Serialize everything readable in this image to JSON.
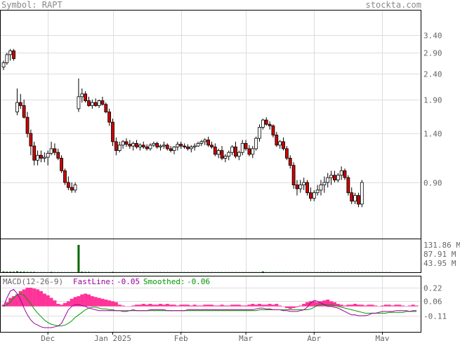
{
  "header": {
    "symbol_text": "Symbol: RAPT",
    "site": "stockta.com"
  },
  "macd": {
    "title": "MACD(12-26-9)",
    "fast_label": "FastLine:",
    "fast_value": "-0.05",
    "smooth_label": "Smoothed:",
    "smooth_value": "-0.06",
    "ticks": [
      "0.22",
      "0.06",
      "-0.11"
    ],
    "tick_values": [
      0.22,
      0.06,
      -0.11
    ],
    "fast_color": "#990099",
    "smooth_color": "#009900",
    "hist_color": "#ff3399",
    "hist": [
      0.02,
      0.05,
      0.1,
      0.12,
      0.14,
      0.18,
      0.2,
      0.22,
      0.22,
      0.21,
      0.2,
      0.18,
      0.15,
      0.13,
      0.1,
      0.07,
      0.03,
      0.02,
      0.04,
      0.06,
      0.09,
      0.11,
      0.12,
      0.14,
      0.15,
      0.14,
      0.12,
      0.11,
      0.1,
      0.09,
      0.08,
      0.07,
      0.06,
      0.05,
      0.02,
      0.01,
      0.0,
      0.0,
      0.01,
      0.02,
      0.02,
      0.03,
      0.02,
      0.03,
      0.02,
      0.02,
      0.03,
      0.02,
      0.03,
      0.02,
      0.02,
      0.01,
      0.02,
      0.02,
      0.02,
      0.01,
      0.02,
      0.01,
      0.01,
      0.02,
      0.02,
      0.02,
      0.01,
      0.01,
      0.02,
      0.01,
      0.01,
      0.02,
      0.02,
      0.02,
      0.01,
      0.01,
      0.02,
      0.03,
      0.02,
      0.03,
      0.02,
      0.02,
      0.03,
      0.02,
      0.03,
      0.01,
      0.0,
      -0.02,
      -0.03,
      -0.02,
      -0.01,
      0.01,
      0.03,
      0.05,
      0.06,
      0.06,
      0.05,
      0.06,
      0.07,
      0.08,
      0.06,
      0.05,
      0.03,
      0.02,
      0.01,
      0.02,
      0.02,
      0.03,
      0.02,
      0.02,
      0.01,
      0.02,
      0.02,
      0.01,
      0.0,
      0.01,
      0.02,
      0.02,
      0.01,
      0.02,
      0.02,
      0.01,
      0.0,
      0.01,
      0.02,
      0.01
    ],
    "fast": [
      0.0,
      0.1,
      0.18,
      0.2,
      0.15,
      0.08,
      -0.02,
      -0.1,
      -0.16,
      -0.2,
      -0.22,
      -0.24,
      -0.25,
      -0.25,
      -0.25,
      -0.24,
      -0.23,
      -0.2,
      -0.12,
      -0.04,
      0.0,
      0.02,
      0.02,
      0.01,
      0.0,
      -0.02,
      -0.03,
      -0.04,
      -0.05,
      -0.05,
      -0.05,
      -0.05,
      -0.05,
      -0.05,
      -0.05,
      -0.06,
      -0.06,
      -0.05,
      -0.04,
      -0.05,
      -0.05,
      -0.05,
      -0.05,
      -0.04,
      -0.04,
      -0.04,
      -0.04,
      -0.04,
      -0.05,
      -0.05,
      -0.05,
      -0.05,
      -0.05,
      -0.05,
      -0.04,
      -0.04,
      -0.04,
      -0.04,
      -0.04,
      -0.04,
      -0.04,
      -0.04,
      -0.04,
      -0.04,
      -0.04,
      -0.04,
      -0.04,
      -0.04,
      -0.04,
      -0.04,
      -0.04,
      -0.04,
      -0.04,
      -0.04,
      -0.03,
      -0.02,
      -0.02,
      -0.03,
      -0.03,
      -0.04,
      -0.04,
      -0.04,
      -0.05,
      -0.05,
      -0.06,
      -0.06,
      -0.06,
      -0.05,
      -0.04,
      -0.01,
      0.04,
      0.07,
      0.06,
      0.04,
      0.02,
      0.0,
      0.0,
      -0.01,
      -0.02,
      -0.04,
      -0.06,
      -0.08,
      -0.1,
      -0.1,
      -0.11,
      -0.11,
      -0.11,
      -0.1,
      -0.08,
      -0.08,
      -0.07,
      -0.06,
      -0.06,
      -0.06,
      -0.06,
      -0.05,
      -0.05,
      -0.05,
      -0.05,
      -0.06,
      -0.05,
      -0.05
    ],
    "smooth": [
      0.0,
      0.02,
      0.05,
      0.1,
      0.14,
      0.15,
      0.13,
      0.08,
      0.03,
      -0.03,
      -0.08,
      -0.12,
      -0.16,
      -0.19,
      -0.21,
      -0.22,
      -0.23,
      -0.23,
      -0.22,
      -0.2,
      -0.17,
      -0.13,
      -0.1,
      -0.07,
      -0.04,
      -0.02,
      -0.01,
      -0.01,
      -0.02,
      -0.03,
      -0.03,
      -0.04,
      -0.04,
      -0.05,
      -0.05,
      -0.05,
      -0.05,
      -0.05,
      -0.05,
      -0.05,
      -0.05,
      -0.05,
      -0.05,
      -0.05,
      -0.05,
      -0.05,
      -0.05,
      -0.05,
      -0.05,
      -0.05,
      -0.05,
      -0.05,
      -0.05,
      -0.05,
      -0.05,
      -0.05,
      -0.05,
      -0.05,
      -0.05,
      -0.05,
      -0.05,
      -0.05,
      -0.05,
      -0.05,
      -0.05,
      -0.05,
      -0.05,
      -0.05,
      -0.05,
      -0.05,
      -0.05,
      -0.05,
      -0.05,
      -0.05,
      -0.05,
      -0.04,
      -0.04,
      -0.04,
      -0.04,
      -0.04,
      -0.04,
      -0.04,
      -0.04,
      -0.04,
      -0.04,
      -0.04,
      -0.04,
      -0.04,
      -0.04,
      -0.04,
      -0.03,
      -0.01,
      0.01,
      0.02,
      0.02,
      0.02,
      0.02,
      0.01,
      0.0,
      -0.01,
      -0.02,
      -0.03,
      -0.04,
      -0.05,
      -0.06,
      -0.07,
      -0.08,
      -0.08,
      -0.08,
      -0.08,
      -0.08,
      -0.08,
      -0.08,
      -0.07,
      -0.07,
      -0.07,
      -0.07,
      -0.07,
      -0.06,
      -0.06,
      -0.06,
      -0.06
    ]
  },
  "chart_data": {
    "type": "candlestick",
    "symbol": "RAPT",
    "price_ticks": [
      "3.40",
      "2.90",
      "2.40",
      "1.90",
      "1.40",
      "0.90"
    ],
    "price_tick_values": [
      3.4,
      2.9,
      2.4,
      1.9,
      1.4,
      0.9
    ],
    "volume_ticks": [
      "131.86 M",
      "87.91 M",
      "43.95 M"
    ],
    "volume_tick_values": [
      131.86,
      87.91,
      43.95
    ],
    "volume_unit": "M",
    "x_labels": [
      "Dec",
      "Jan 2025",
      "Feb",
      "Mar",
      "Apr",
      "May"
    ],
    "x_label_index": [
      13,
      32,
      52,
      71,
      91,
      111
    ],
    "up_color": "#ffffff",
    "down_color": "#cc0000",
    "volume_color": "#006600",
    "ohlc": [
      [
        2.55,
        2.7,
        2.48,
        2.65
      ],
      [
        2.65,
        2.9,
        2.6,
        2.85
      ],
      [
        2.85,
        3.0,
        2.7,
        2.95
      ],
      [
        2.95,
        3.0,
        2.7,
        2.75
      ],
      [
        1.7,
        2.1,
        1.65,
        1.85
      ],
      [
        1.85,
        2.0,
        1.75,
        1.8
      ],
      [
        1.8,
        1.9,
        1.6,
        1.62
      ],
      [
        1.62,
        1.7,
        1.35,
        1.4
      ],
      [
        1.4,
        1.45,
        1.15,
        1.25
      ],
      [
        1.25,
        1.3,
        1.05,
        1.1
      ],
      [
        1.1,
        1.2,
        1.05,
        1.15
      ],
      [
        1.15,
        1.2,
        1.08,
        1.12
      ],
      [
        1.12,
        1.18,
        1.08,
        1.13
      ],
      [
        1.13,
        1.2,
        1.05,
        1.17
      ],
      [
        1.17,
        1.3,
        1.15,
        1.22
      ],
      [
        1.22,
        1.28,
        1.15,
        1.18
      ],
      [
        1.18,
        1.22,
        1.1,
        1.12
      ],
      [
        1.12,
        1.15,
        0.98,
        1.0
      ],
      [
        1.0,
        1.02,
        0.88,
        0.9
      ],
      [
        0.9,
        0.95,
        0.84,
        0.86
      ],
      [
        0.86,
        0.9,
        0.82,
        0.84
      ],
      [
        0.84,
        0.9,
        0.82,
        0.88
      ],
      [
        1.75,
        2.3,
        1.7,
        1.95
      ],
      [
        1.95,
        2.1,
        1.85,
        2.0
      ],
      [
        2.0,
        2.05,
        1.85,
        1.88
      ],
      [
        1.88,
        1.95,
        1.78,
        1.8
      ],
      [
        1.8,
        1.9,
        1.75,
        1.85
      ],
      [
        1.85,
        1.92,
        1.78,
        1.8
      ],
      [
        1.8,
        1.9,
        1.76,
        1.88
      ],
      [
        1.88,
        1.95,
        1.8,
        1.82
      ],
      [
        1.82,
        1.85,
        1.68,
        1.7
      ],
      [
        1.7,
        1.75,
        1.5,
        1.55
      ],
      [
        1.55,
        1.6,
        1.25,
        1.3
      ],
      [
        1.3,
        1.35,
        1.15,
        1.2
      ],
      [
        1.2,
        1.3,
        1.18,
        1.26
      ],
      [
        1.26,
        1.32,
        1.22,
        1.3
      ],
      [
        1.3,
        1.34,
        1.24,
        1.27
      ],
      [
        1.27,
        1.32,
        1.22,
        1.25
      ],
      [
        1.25,
        1.3,
        1.2,
        1.28
      ],
      [
        1.28,
        1.32,
        1.22,
        1.24
      ],
      [
        1.24,
        1.28,
        1.2,
        1.26
      ],
      [
        1.26,
        1.3,
        1.22,
        1.24
      ],
      [
        1.24,
        1.27,
        1.2,
        1.22
      ],
      [
        1.22,
        1.28,
        1.2,
        1.26
      ],
      [
        1.26,
        1.3,
        1.24,
        1.28
      ],
      [
        1.28,
        1.3,
        1.22,
        1.24
      ],
      [
        1.24,
        1.27,
        1.2,
        1.25
      ],
      [
        1.25,
        1.3,
        1.22,
        1.26
      ],
      [
        1.26,
        1.28,
        1.2,
        1.22
      ],
      [
        1.22,
        1.25,
        1.18,
        1.2
      ],
      [
        1.2,
        1.25,
        1.16,
        1.24
      ],
      [
        1.24,
        1.3,
        1.2,
        1.27
      ],
      [
        1.27,
        1.3,
        1.22,
        1.25
      ],
      [
        1.25,
        1.28,
        1.22,
        1.24
      ],
      [
        1.24,
        1.27,
        1.2,
        1.22
      ],
      [
        1.22,
        1.26,
        1.18,
        1.24
      ],
      [
        1.24,
        1.28,
        1.2,
        1.25
      ],
      [
        1.25,
        1.3,
        1.24,
        1.28
      ],
      [
        1.28,
        1.32,
        1.25,
        1.3
      ],
      [
        1.3,
        1.34,
        1.26,
        1.32
      ],
      [
        1.32,
        1.36,
        1.24,
        1.26
      ],
      [
        1.26,
        1.3,
        1.22,
        1.24
      ],
      [
        1.24,
        1.28,
        1.14,
        1.16
      ],
      [
        1.16,
        1.22,
        1.12,
        1.2
      ],
      [
        1.2,
        1.25,
        1.1,
        1.12
      ],
      [
        1.12,
        1.16,
        1.08,
        1.14
      ],
      [
        1.14,
        1.2,
        1.1,
        1.18
      ],
      [
        1.18,
        1.26,
        1.15,
        1.24
      ],
      [
        1.24,
        1.3,
        1.12,
        1.14
      ],
      [
        1.14,
        1.2,
        1.1,
        1.18
      ],
      [
        1.18,
        1.32,
        1.15,
        1.28
      ],
      [
        1.28,
        1.32,
        1.2,
        1.22
      ],
      [
        1.22,
        1.26,
        1.14,
        1.16
      ],
      [
        1.16,
        1.25,
        1.12,
        1.22
      ],
      [
        1.22,
        1.36,
        1.2,
        1.34
      ],
      [
        1.34,
        1.52,
        1.3,
        1.48
      ],
      [
        1.48,
        1.6,
        1.45,
        1.58
      ],
      [
        1.58,
        1.62,
        1.5,
        1.52
      ],
      [
        1.52,
        1.56,
        1.45,
        1.5
      ],
      [
        1.5,
        1.52,
        1.35,
        1.38
      ],
      [
        1.38,
        1.42,
        1.24,
        1.26
      ],
      [
        1.26,
        1.32,
        1.22,
        1.3
      ],
      [
        1.3,
        1.35,
        1.2,
        1.22
      ],
      [
        1.22,
        1.25,
        1.1,
        1.12
      ],
      [
        1.12,
        1.15,
        1.02,
        1.05
      ],
      [
        1.05,
        1.08,
        0.85,
        0.88
      ],
      [
        0.88,
        0.92,
        0.8,
        0.85
      ],
      [
        0.85,
        0.92,
        0.82,
        0.88
      ],
      [
        0.88,
        0.94,
        0.84,
        0.9
      ],
      [
        0.9,
        0.92,
        0.8,
        0.82
      ],
      [
        0.82,
        0.86,
        0.76,
        0.78
      ],
      [
        0.78,
        0.84,
        0.76,
        0.82
      ],
      [
        0.82,
        0.88,
        0.8,
        0.84
      ],
      [
        0.84,
        0.92,
        0.8,
        0.88
      ],
      [
        0.88,
        0.95,
        0.82,
        0.9
      ],
      [
        0.9,
        0.98,
        0.86,
        0.94
      ],
      [
        0.94,
        1.0,
        0.88,
        0.96
      ],
      [
        0.96,
        1.0,
        0.9,
        0.92
      ],
      [
        0.92,
        0.98,
        0.9,
        0.96
      ],
      [
        0.96,
        1.04,
        0.92,
        1.0
      ],
      [
        1.0,
        1.02,
        0.92,
        0.94
      ],
      [
        0.94,
        0.96,
        0.8,
        0.82
      ],
      [
        0.82,
        0.86,
        0.74,
        0.76
      ],
      [
        0.76,
        0.82,
        0.74,
        0.8
      ],
      [
        0.8,
        0.82,
        0.72,
        0.74
      ],
      [
        0.74,
        0.92,
        0.72,
        0.9
      ]
    ],
    "volume": [
      4,
      3,
      3,
      3,
      5,
      3,
      3,
      2,
      2,
      2,
      1,
      1,
      1,
      1,
      2,
      1,
      1,
      1,
      1,
      1,
      1,
      1,
      131.86,
      3,
      2,
      2,
      1,
      1,
      1,
      1,
      1,
      1,
      2,
      1,
      1,
      1,
      1,
      1,
      1,
      1,
      1,
      1,
      1,
      1,
      1,
      1,
      1,
      1,
      1,
      1,
      1,
      1,
      1,
      1,
      1,
      1,
      1,
      1,
      1,
      1,
      1,
      1,
      1,
      1,
      1,
      1,
      1,
      1,
      1,
      1,
      1,
      1,
      1,
      1,
      1,
      1,
      4,
      1,
      1,
      1,
      1,
      1,
      1,
      1,
      1,
      1,
      1,
      1,
      1,
      1,
      1,
      1,
      1,
      1,
      1,
      1,
      1,
      1,
      1,
      1,
      1,
      1,
      1,
      1,
      1,
      1,
      1,
      1,
      1,
      1,
      1,
      1,
      1,
      1
    ]
  }
}
